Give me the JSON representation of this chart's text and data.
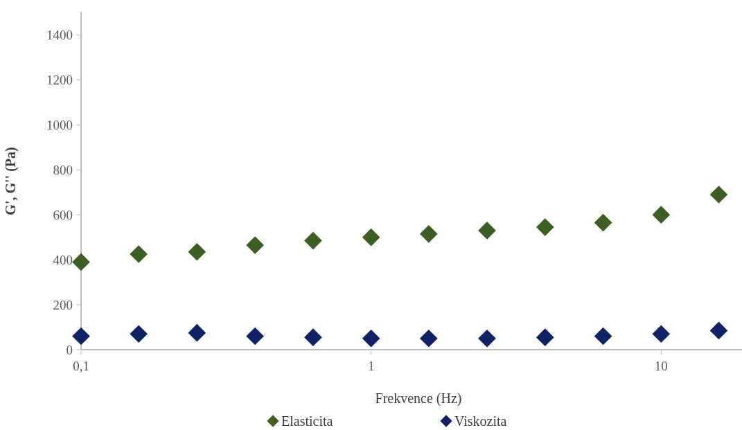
{
  "chart_data": {
    "type": "scatter",
    "xlabel": "Frekvence (Hz)",
    "ylabel": "G', G'' (Pa)",
    "log": "x",
    "marker": "diamond",
    "legend": "bottom",
    "grid": false,
    "x": [
      0.1,
      0.158,
      0.251,
      0.398,
      0.631,
      1,
      1.58,
      2.51,
      3.98,
      6.31,
      10,
      15.8
    ],
    "xlim": [
      0.1,
      19
    ],
    "xticks": [
      {
        "value": 0.1,
        "label": "0,1"
      },
      1,
      10
    ],
    "ylim": [
      0,
      1500
    ],
    "yticks": [
      0,
      200,
      400,
      600,
      800,
      1000,
      1200,
      1400
    ],
    "series": [
      {
        "name": "Elasticita",
        "color": "#3e5f24",
        "values": [
          390,
          425,
          435,
          465,
          485,
          500,
          515,
          530,
          545,
          565,
          600,
          690
        ]
      },
      {
        "name": "Viskozita",
        "color": "#0e2265",
        "values": [
          60,
          70,
          75,
          60,
          55,
          50,
          50,
          50,
          55,
          60,
          70,
          85
        ]
      }
    ]
  }
}
